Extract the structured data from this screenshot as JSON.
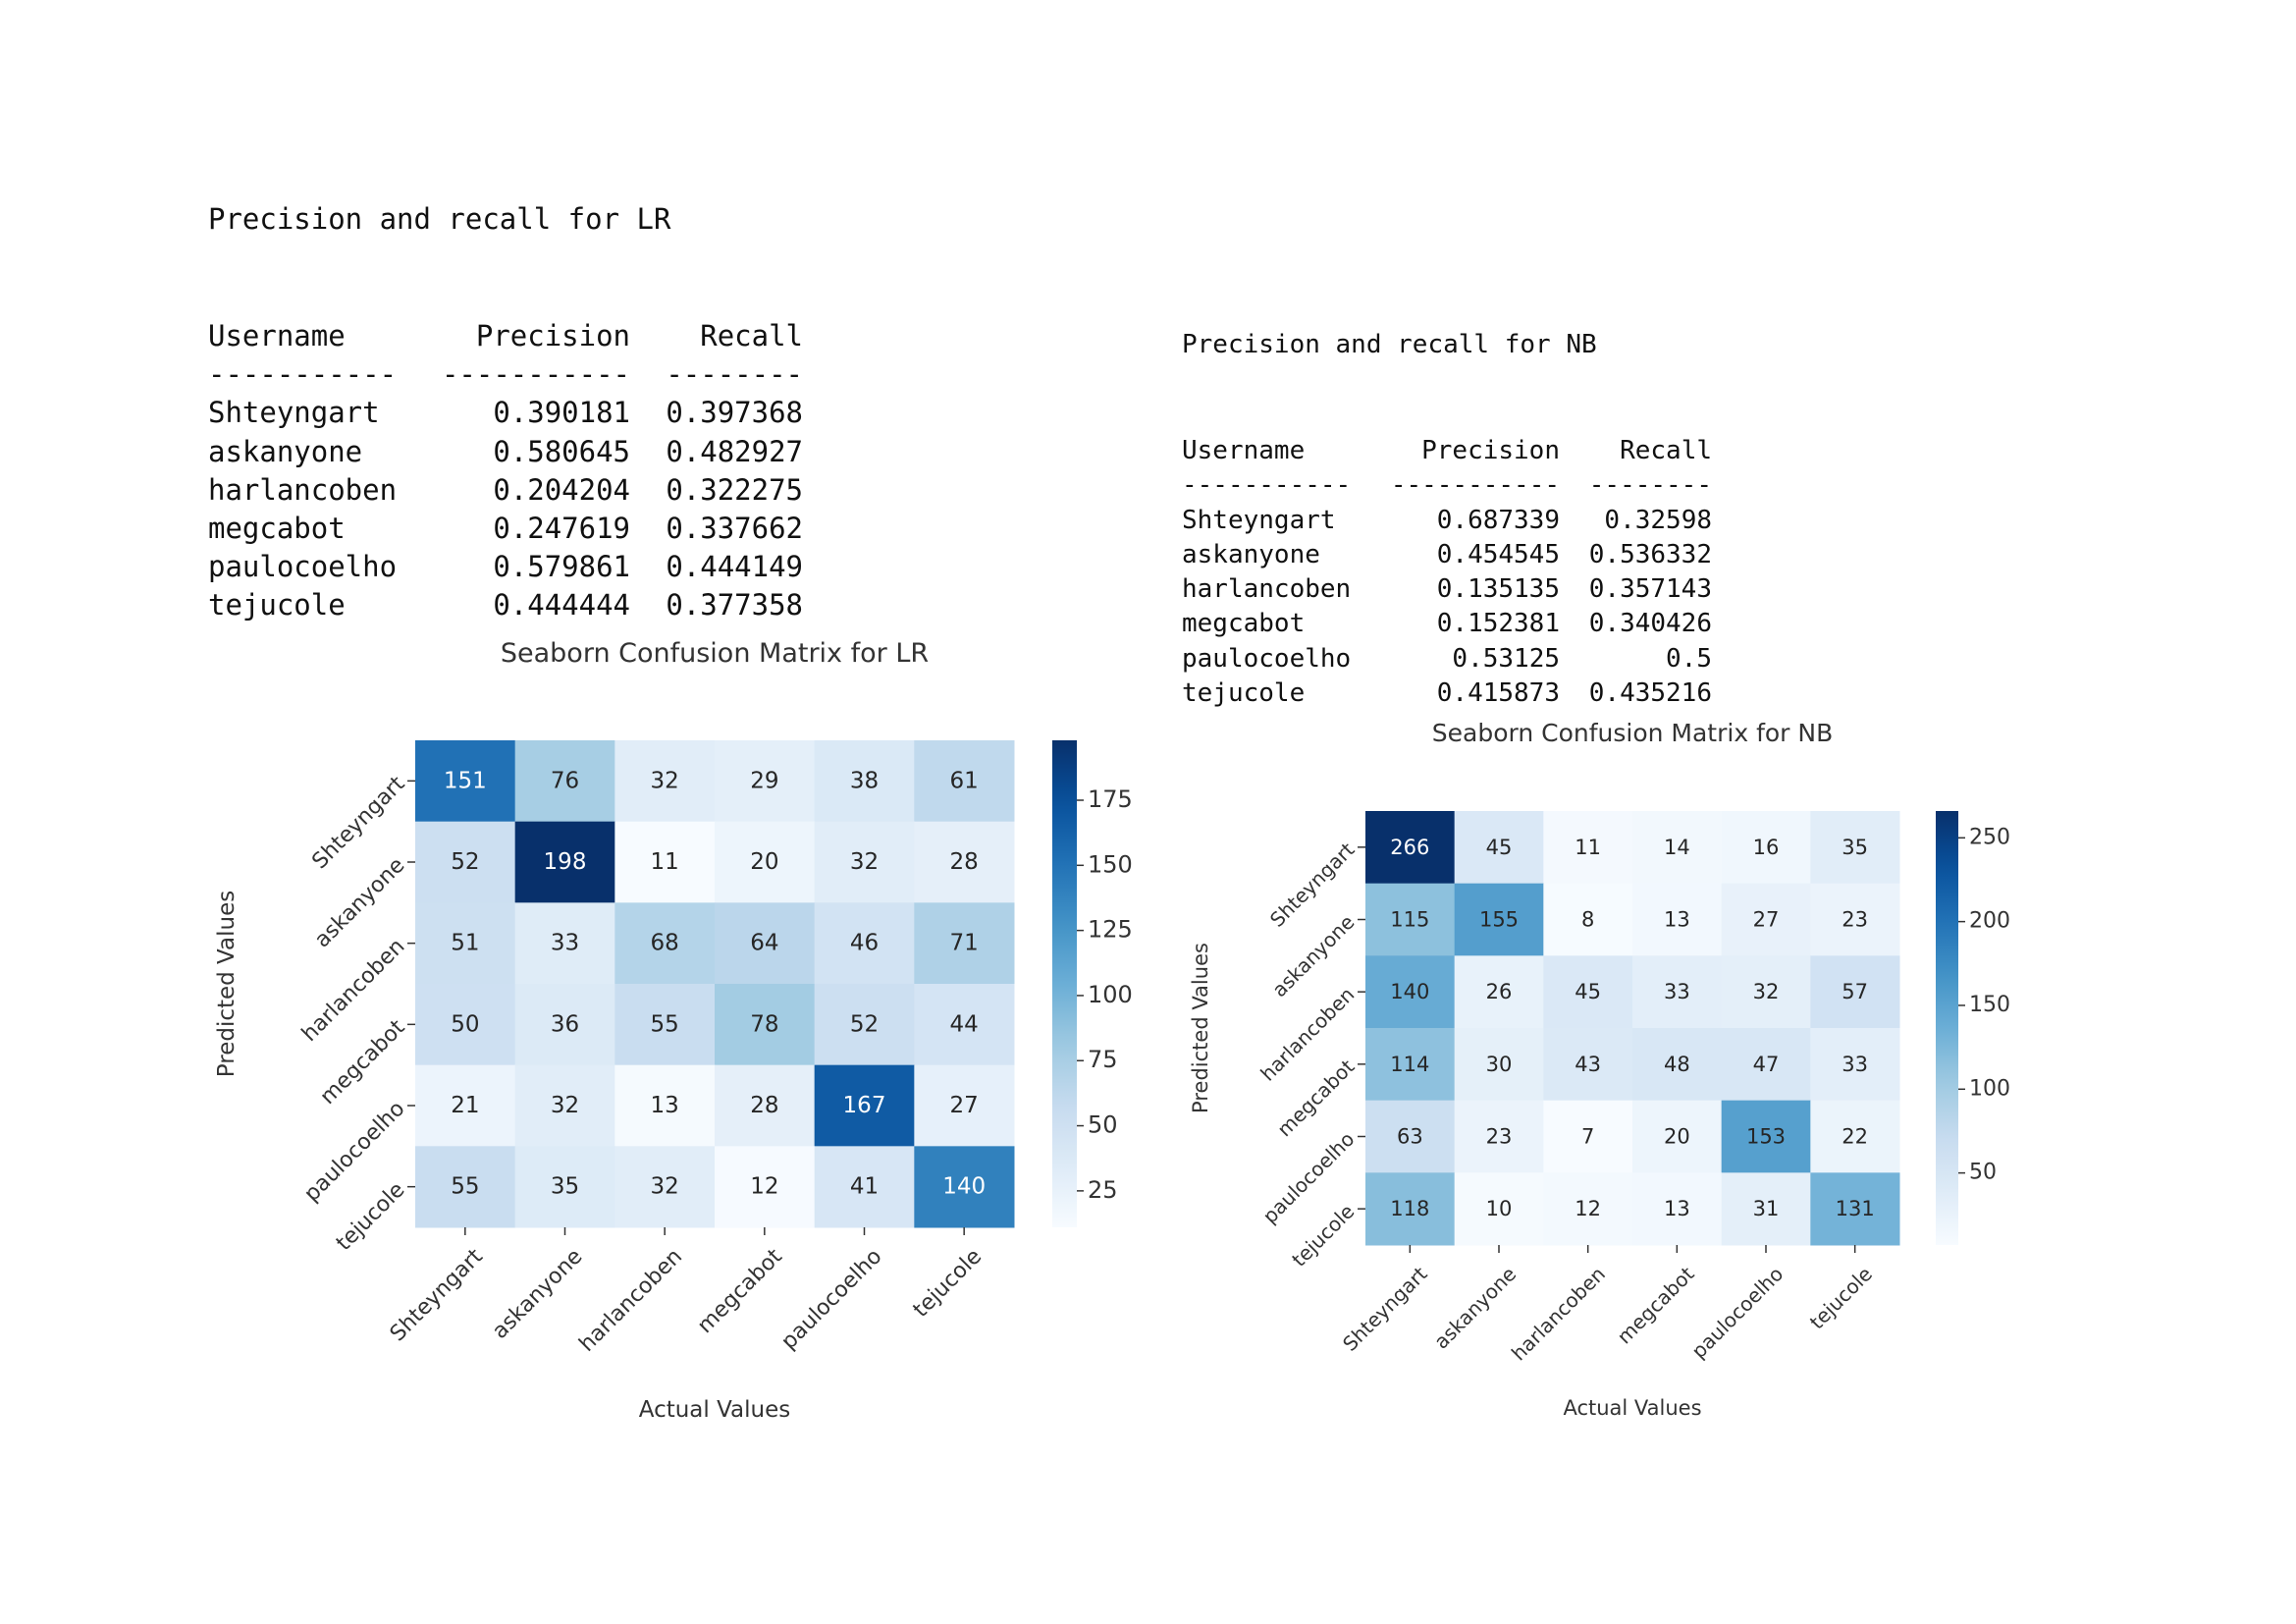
{
  "panels": [
    {
      "id": "lr",
      "heading": "Precision and recall for LR",
      "table": {
        "headers": [
          "Username",
          "Precision",
          "Recall"
        ],
        "dashes": [
          "-----------",
          "-----------",
          "--------"
        ],
        "rows": [
          [
            "Shteyngart",
            "0.390181",
            "0.397368"
          ],
          [
            "askanyone",
            "0.580645",
            "0.482927"
          ],
          [
            "harlancoben",
            "0.204204",
            "0.322275"
          ],
          [
            "megcabot",
            "0.247619",
            "0.337662"
          ],
          [
            "paulocoelho",
            "0.579861",
            "0.444149"
          ],
          [
            "tejucole",
            "0.444444",
            "0.377358"
          ]
        ]
      }
    },
    {
      "id": "nb",
      "heading": "Precision and recall for NB",
      "table": {
        "headers": [
          "Username",
          "Precision",
          "Recall"
        ],
        "dashes": [
          "-----------",
          "-----------",
          "--------"
        ],
        "rows": [
          [
            "Shteyngart",
            "0.687339",
            "0.32598"
          ],
          [
            "askanyone",
            "0.454545",
            "0.536332"
          ],
          [
            "harlancoben",
            "0.135135",
            "0.357143"
          ],
          [
            "megcabot",
            "0.152381",
            "0.340426"
          ],
          [
            "paulocoelho",
            "0.53125",
            "0.5"
          ],
          [
            "tejucole",
            "0.415873",
            "0.435216"
          ]
        ]
      }
    }
  ],
  "chart_data": [
    {
      "type": "heatmap",
      "title": "Seaborn Confusion Matrix for LR",
      "xlabel": "Actual Values",
      "ylabel": "Predicted Values",
      "x_categories": [
        "Shteyngart",
        "askanyone",
        "harlancoben",
        "megcabot",
        "paulocoelho",
        "tejucole"
      ],
      "y_categories": [
        "Shteyngart",
        "askanyone",
        "harlancoben",
        "megcabot",
        "paulocoelho",
        "tejucole"
      ],
      "values": [
        [
          151,
          76,
          32,
          29,
          38,
          61
        ],
        [
          52,
          198,
          11,
          20,
          32,
          28
        ],
        [
          51,
          33,
          68,
          64,
          46,
          71
        ],
        [
          50,
          36,
          55,
          78,
          52,
          44
        ],
        [
          21,
          32,
          13,
          28,
          167,
          27
        ],
        [
          55,
          35,
          32,
          12,
          41,
          140
        ]
      ],
      "colormap": "Blues",
      "colorbar": {
        "min": 11,
        "max": 198,
        "ticks": [
          25,
          50,
          75,
          100,
          125,
          150,
          175
        ]
      }
    },
    {
      "type": "heatmap",
      "title": "Seaborn Confusion Matrix for NB",
      "xlabel": "Actual Values",
      "ylabel": "Predicted Values",
      "x_categories": [
        "Shteyngart",
        "askanyone",
        "harlancoben",
        "megcabot",
        "paulocoelho",
        "tejucole"
      ],
      "y_categories": [
        "Shteyngart",
        "askanyone",
        "harlancoben",
        "megcabot",
        "paulocoelho",
        "tejucole"
      ],
      "values": [
        [
          266,
          45,
          11,
          14,
          16,
          35
        ],
        [
          115,
          155,
          8,
          13,
          27,
          23
        ],
        [
          140,
          26,
          45,
          33,
          32,
          57
        ],
        [
          114,
          30,
          43,
          48,
          47,
          33
        ],
        [
          63,
          23,
          7,
          20,
          153,
          22
        ],
        [
          118,
          10,
          12,
          13,
          31,
          131
        ]
      ],
      "colormap": "Blues",
      "colorbar": {
        "min": 7,
        "max": 266,
        "ticks": [
          50,
          100,
          150,
          200,
          250
        ]
      }
    }
  ]
}
